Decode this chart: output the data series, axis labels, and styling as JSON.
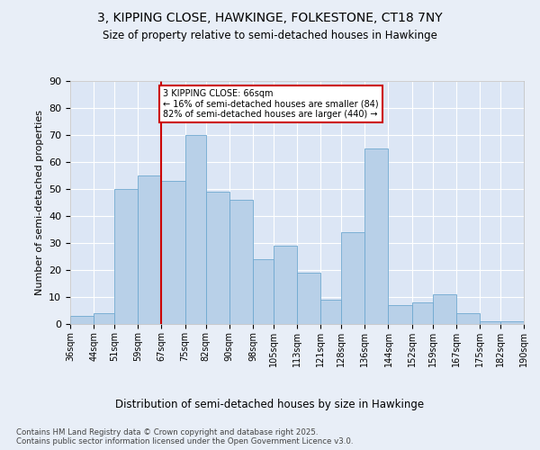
{
  "title": "3, KIPPING CLOSE, HAWKINGE, FOLKESTONE, CT18 7NY",
  "subtitle": "Size of property relative to semi-detached houses in Hawkinge",
  "xlabel": "Distribution of semi-detached houses by size in Hawkinge",
  "ylabel": "Number of semi-detached properties",
  "bins": [
    36,
    44,
    51,
    59,
    67,
    75,
    82,
    90,
    98,
    105,
    113,
    121,
    128,
    136,
    144,
    152,
    159,
    167,
    175,
    182,
    190
  ],
  "counts": [
    3,
    4,
    50,
    55,
    53,
    70,
    49,
    46,
    24,
    29,
    19,
    9,
    34,
    65,
    7,
    8,
    11,
    4,
    1,
    1
  ],
  "bar_color": "#b8d0e8",
  "bar_edge_color": "#6fa8d0",
  "property_line_x": 67,
  "annotation_text": "3 KIPPING CLOSE: 66sqm\n← 16% of semi-detached houses are smaller (84)\n82% of semi-detached houses are larger (440) →",
  "annotation_box_color": "#ffffff",
  "annotation_box_edge": "#cc0000",
  "line_color": "#cc0000",
  "background_color": "#e8eef7",
  "plot_background": "#dce6f5",
  "footer": "Contains HM Land Registry data © Crown copyright and database right 2025.\nContains public sector information licensed under the Open Government Licence v3.0.",
  "ylim": [
    0,
    90
  ],
  "yticks": [
    0,
    10,
    20,
    30,
    40,
    50,
    60,
    70,
    80,
    90
  ],
  "tick_labels": [
    "36sqm",
    "44sqm",
    "51sqm",
    "59sqm",
    "67sqm",
    "75sqm",
    "82sqm",
    "90sqm",
    "98sqm",
    "105sqm",
    "113sqm",
    "121sqm",
    "128sqm",
    "136sqm",
    "144sqm",
    "152sqm",
    "159sqm",
    "167sqm",
    "175sqm",
    "182sqm",
    "190sqm"
  ]
}
